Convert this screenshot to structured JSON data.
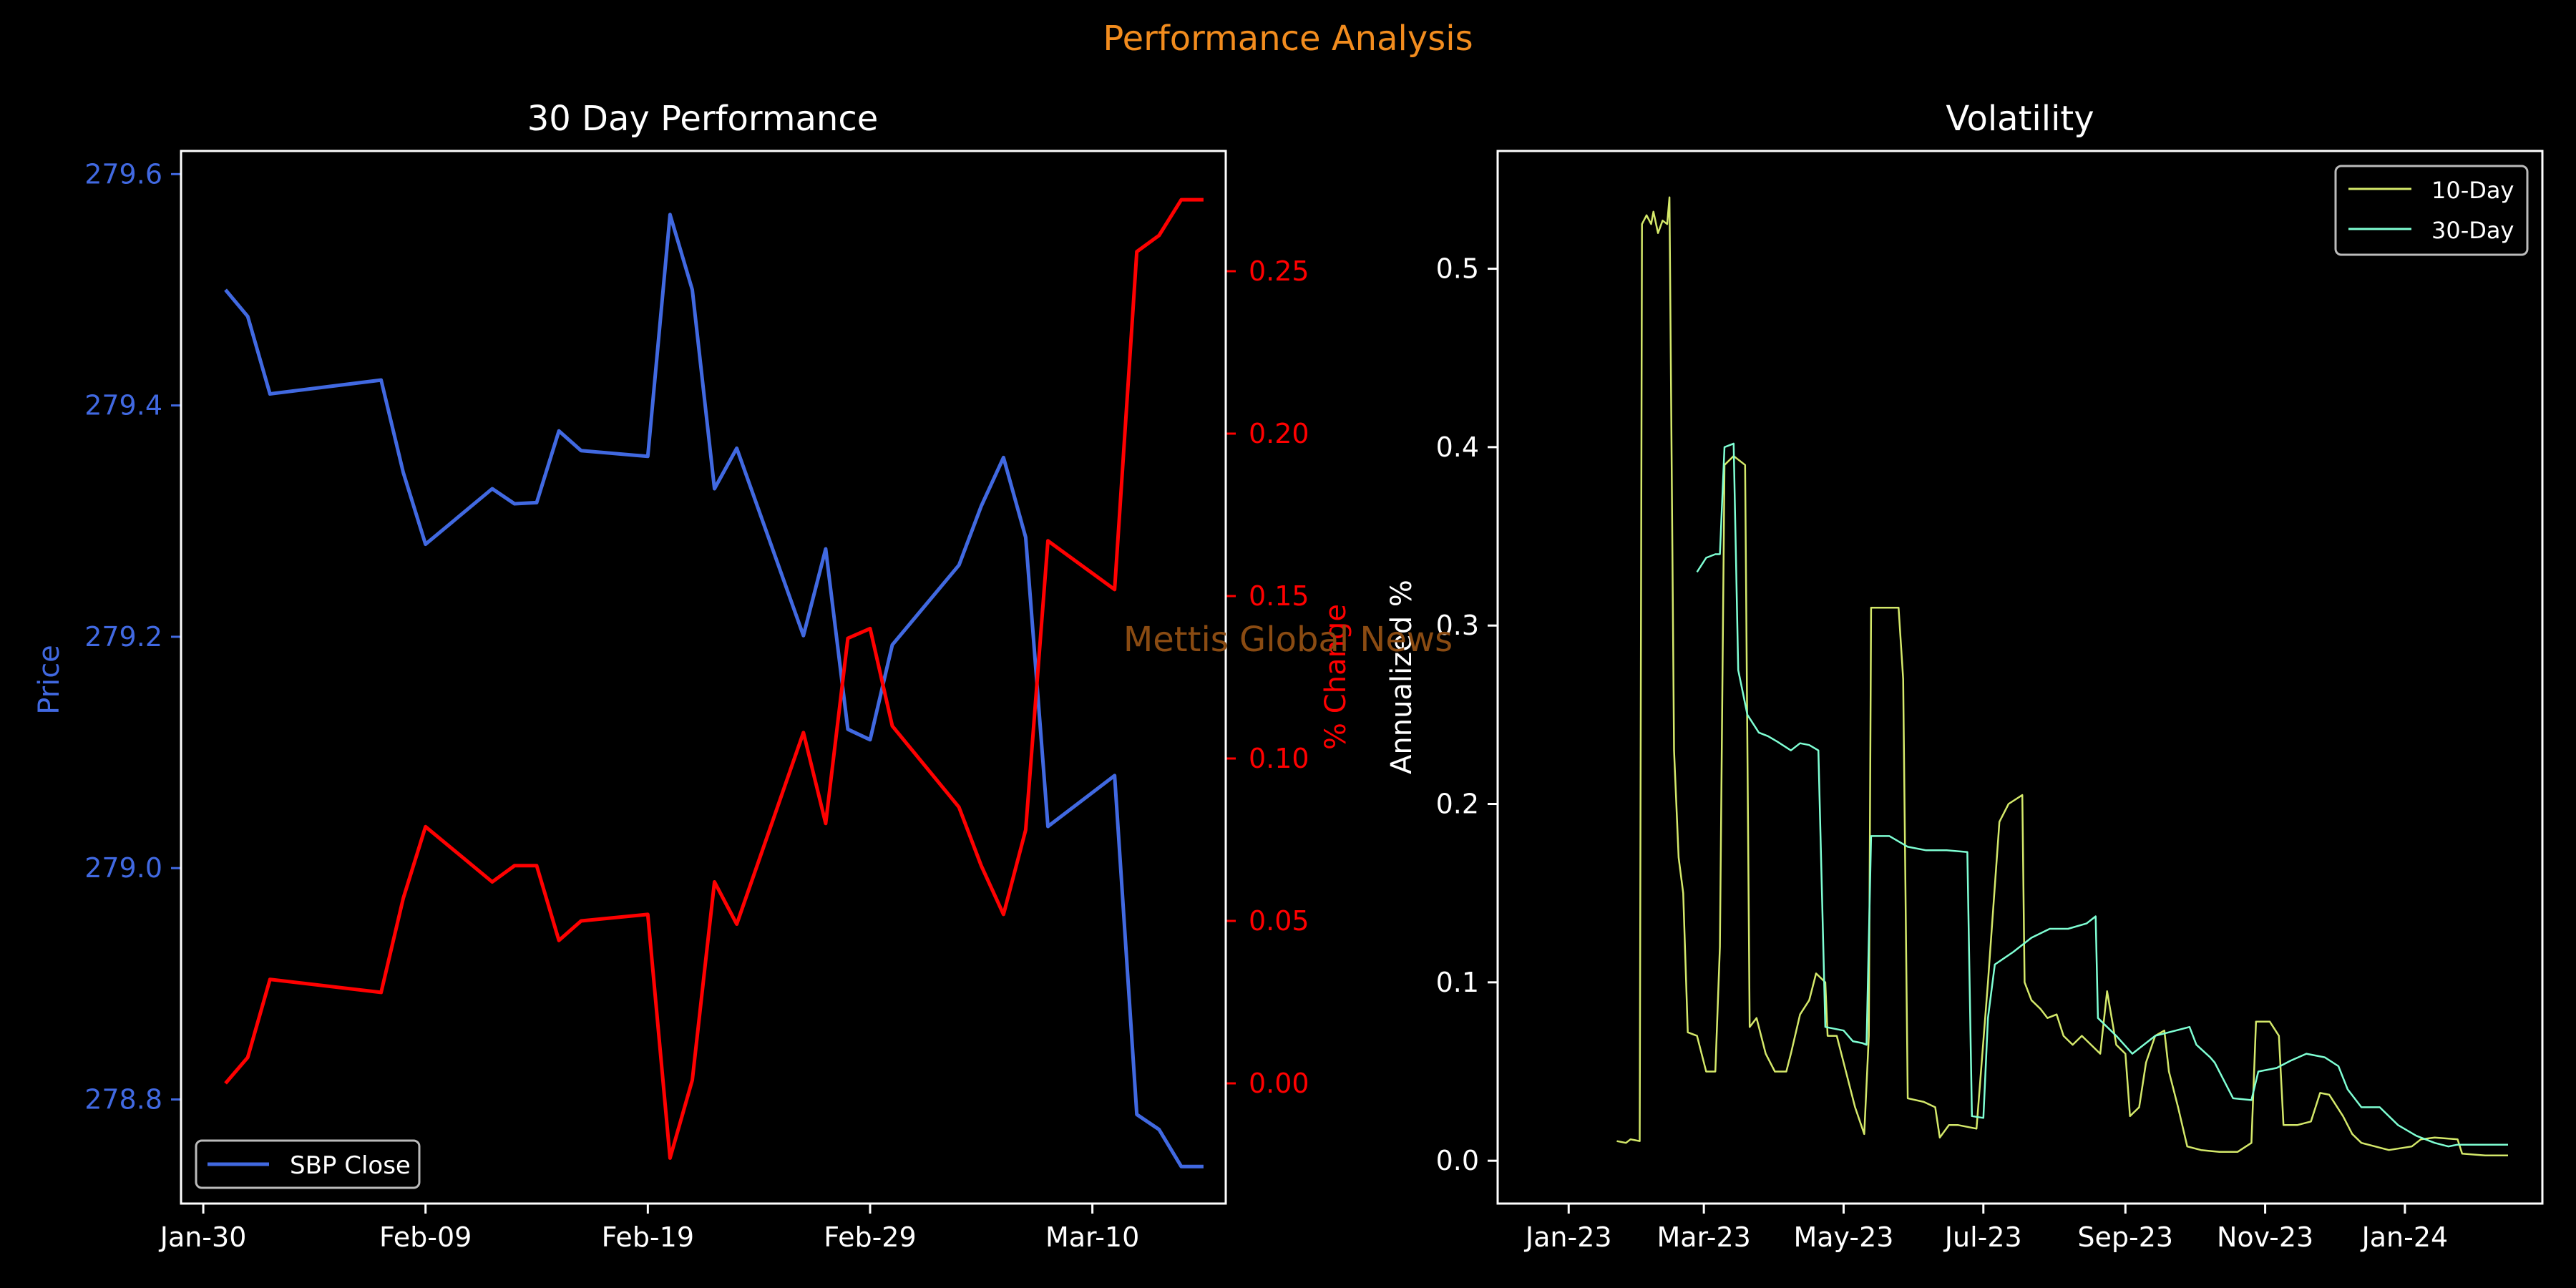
{
  "figure": {
    "suptitle": "Performance Analysis",
    "watermark": "Mettis Global News",
    "colors": {
      "background": "#000000",
      "suptitle": "#f28c1e",
      "watermark": "#8a4b12",
      "price": "#4169e1",
      "pct": "#ff0000",
      "vol10": "#d4e86a",
      "vol30": "#7fffd4",
      "axes": "#ffffff"
    }
  },
  "chart_data": [
    {
      "type": "line",
      "title": "30 Day Performance",
      "xlabel": "",
      "ylabel": "Price",
      "ylabel_right": "% Change",
      "x_ticks": [
        "Jan-30",
        "Feb-09",
        "Feb-19",
        "Feb-29",
        "Mar-10"
      ],
      "ylim": [
        278.71,
        279.62
      ],
      "yticks": [
        "278.8",
        "279.0",
        "279.2",
        "279.4",
        "279.6"
      ],
      "ylim_right": [
        -0.037,
        0.287
      ],
      "yticks_right": [
        "0.00",
        "0.05",
        "0.10",
        "0.15",
        "0.20",
        "0.25"
      ],
      "legend": {
        "placement": "lower-left",
        "entries": [
          "SBP Close"
        ]
      },
      "x": [
        "2024-01-31",
        "2024-02-01",
        "2024-02-02",
        "2024-02-07",
        "2024-02-08",
        "2024-02-09",
        "2024-02-12",
        "2024-02-13",
        "2024-02-14",
        "2024-02-15",
        "2024-02-16",
        "2024-02-19",
        "2024-02-20",
        "2024-02-21",
        "2024-02-22",
        "2024-02-23",
        "2024-02-26",
        "2024-02-27",
        "2024-02-28",
        "2024-02-29",
        "2024-03-01",
        "2024-03-04",
        "2024-03-05",
        "2024-03-06",
        "2024-03-07",
        "2024-03-08",
        "2024-03-11",
        "2024-03-12",
        "2024-03-13",
        "2024-03-14",
        "2024-03-15"
      ],
      "series": [
        {
          "name": "SBP Close",
          "axis": "left",
          "values": [
            279.5,
            279.477,
            279.41,
            279.422,
            279.342,
            279.28,
            279.328,
            279.315,
            279.316,
            279.378,
            279.361,
            279.356,
            279.565,
            279.5,
            279.328,
            279.363,
            279.201,
            279.276,
            279.12,
            279.111,
            279.193,
            279.262,
            279.313,
            279.355,
            279.286,
            279.036,
            279.08,
            278.787,
            278.774,
            278.742,
            278.742
          ]
        },
        {
          "name": "% Change",
          "axis": "right",
          "values": [
            0.0,
            0.008,
            0.032,
            0.028,
            0.057,
            0.079,
            0.062,
            0.067,
            0.067,
            0.044,
            0.05,
            0.052,
            -0.023,
            0.001,
            0.062,
            0.049,
            0.108,
            0.08,
            0.137,
            0.14,
            0.11,
            0.085,
            0.067,
            0.052,
            0.078,
            0.167,
            0.152,
            0.256,
            0.261,
            0.272,
            0.272
          ]
        }
      ]
    },
    {
      "type": "line",
      "title": "Volatility",
      "xlabel": "",
      "ylabel": "Annualized %",
      "x_ticks": [
        "Jan-23",
        "Mar-23",
        "May-23",
        "Jul-23",
        "Sep-23",
        "Nov-23",
        "Jan-24"
      ],
      "ylim": [
        -0.024,
        0.566
      ],
      "yticks": [
        "0.0",
        "0.1",
        "0.2",
        "0.3",
        "0.4",
        "0.5"
      ],
      "legend": {
        "placement": "upper-right",
        "entries": [
          "10-Day",
          "30-Day"
        ]
      },
      "series": [
        {
          "name": "10-Day",
          "points": [
            [
              "2023-01-22",
              0.011
            ],
            [
              "2023-01-26",
              0.01
            ],
            [
              "2023-01-28",
              0.012
            ],
            [
              "2023-02-01",
              0.011
            ],
            [
              "2023-02-02",
              0.525
            ],
            [
              "2023-02-04",
              0.53
            ],
            [
              "2023-02-06",
              0.525
            ],
            [
              "2023-02-07",
              0.532
            ],
            [
              "2023-02-09",
              0.52
            ],
            [
              "2023-02-11",
              0.527
            ],
            [
              "2023-02-13",
              0.525
            ],
            [
              "2023-02-14",
              0.54
            ],
            [
              "2023-02-16",
              0.23
            ],
            [
              "2023-02-18",
              0.17
            ],
            [
              "2023-02-20",
              0.15
            ],
            [
              "2023-02-22",
              0.072
            ],
            [
              "2023-02-26",
              0.07
            ],
            [
              "2023-03-02",
              0.05
            ],
            [
              "2023-03-06",
              0.05
            ],
            [
              "2023-03-08",
              0.12
            ],
            [
              "2023-03-10",
              0.39
            ],
            [
              "2023-03-14",
              0.395
            ],
            [
              "2023-03-19",
              0.39
            ],
            [
              "2023-03-21",
              0.075
            ],
            [
              "2023-03-24",
              0.08
            ],
            [
              "2023-03-28",
              0.06
            ],
            [
              "2023-04-01",
              0.05
            ],
            [
              "2023-04-06",
              0.05
            ],
            [
              "2023-04-08",
              0.06
            ],
            [
              "2023-04-12",
              0.082
            ],
            [
              "2023-04-16",
              0.09
            ],
            [
              "2023-04-19",
              0.105
            ],
            [
              "2023-04-23",
              0.1
            ],
            [
              "2023-04-24",
              0.07
            ],
            [
              "2023-04-28",
              0.07
            ],
            [
              "2023-05-02",
              0.05
            ],
            [
              "2023-05-06",
              0.03
            ],
            [
              "2023-05-10",
              0.015
            ],
            [
              "2023-05-12",
              0.07
            ],
            [
              "2023-05-13",
              0.31
            ],
            [
              "2023-05-25",
              0.31
            ],
            [
              "2023-05-27",
              0.27
            ],
            [
              "2023-05-29",
              0.035
            ],
            [
              "2023-06-05",
              0.033
            ],
            [
              "2023-06-10",
              0.03
            ],
            [
              "2023-06-12",
              0.013
            ],
            [
              "2023-06-16",
              0.02
            ],
            [
              "2023-06-20",
              0.02
            ],
            [
              "2023-06-28",
              0.018
            ],
            [
              "2023-07-03",
              0.1
            ],
            [
              "2023-07-08",
              0.19
            ],
            [
              "2023-07-12",
              0.2
            ],
            [
              "2023-07-18",
              0.205
            ],
            [
              "2023-07-19",
              0.1
            ],
            [
              "2023-07-22",
              0.09
            ],
            [
              "2023-07-26",
              0.085
            ],
            [
              "2023-07-29",
              0.08
            ],
            [
              "2023-08-02",
              0.082
            ],
            [
              "2023-08-05",
              0.07
            ],
            [
              "2023-08-09",
              0.065
            ],
            [
              "2023-08-13",
              0.07
            ],
            [
              "2023-08-17",
              0.065
            ],
            [
              "2023-08-21",
              0.06
            ],
            [
              "2023-08-24",
              0.095
            ],
            [
              "2023-08-28",
              0.065
            ],
            [
              "2023-09-01",
              0.06
            ],
            [
              "2023-09-03",
              0.025
            ],
            [
              "2023-09-07",
              0.03
            ],
            [
              "2023-09-10",
              0.055
            ],
            [
              "2023-09-14",
              0.07
            ],
            [
              "2023-09-18",
              0.073
            ],
            [
              "2023-09-20",
              0.05
            ],
            [
              "2023-09-24",
              0.03
            ],
            [
              "2023-09-28",
              0.008
            ],
            [
              "2023-10-04",
              0.006
            ],
            [
              "2023-10-12",
              0.005
            ],
            [
              "2023-10-20",
              0.005
            ],
            [
              "2023-10-26",
              0.01
            ],
            [
              "2023-10-28",
              0.078
            ],
            [
              "2023-11-03",
              0.078
            ],
            [
              "2023-11-07",
              0.07
            ],
            [
              "2023-11-09",
              0.02
            ],
            [
              "2023-11-15",
              0.02
            ],
            [
              "2023-11-21",
              0.022
            ],
            [
              "2023-11-25",
              0.038
            ],
            [
              "2023-11-29",
              0.037
            ],
            [
              "2023-12-05",
              0.025
            ],
            [
              "2023-12-09",
              0.015
            ],
            [
              "2023-12-13",
              0.01
            ],
            [
              "2023-12-19",
              0.008
            ],
            [
              "2023-12-25",
              0.006
            ],
            [
              "2024-01-04",
              0.008
            ],
            [
              "2024-01-08",
              0.012
            ],
            [
              "2024-01-14",
              0.013
            ],
            [
              "2024-01-24",
              0.012
            ],
            [
              "2024-01-26",
              0.004
            ],
            [
              "2024-02-05",
              0.003
            ],
            [
              "2024-02-15",
              0.003
            ]
          ]
        },
        {
          "name": "30-Day",
          "points": [
            [
              "2023-02-26",
              0.33
            ],
            [
              "2023-03-02",
              0.338
            ],
            [
              "2023-03-06",
              0.34
            ],
            [
              "2023-03-08",
              0.34
            ],
            [
              "2023-03-10",
              0.4
            ],
            [
              "2023-03-14",
              0.402
            ],
            [
              "2023-03-16",
              0.275
            ],
            [
              "2023-03-20",
              0.25
            ],
            [
              "2023-03-25",
              0.24
            ],
            [
              "2023-03-29",
              0.238
            ],
            [
              "2023-04-02",
              0.235
            ],
            [
              "2023-04-08",
              0.23
            ],
            [
              "2023-04-12",
              0.234
            ],
            [
              "2023-04-16",
              0.233
            ],
            [
              "2023-04-20",
              0.23
            ],
            [
              "2023-04-23",
              0.075
            ],
            [
              "2023-05-01",
              0.073
            ],
            [
              "2023-05-05",
              0.067
            ],
            [
              "2023-05-09",
              0.066
            ],
            [
              "2023-05-11",
              0.065
            ],
            [
              "2023-05-13",
              0.182
            ],
            [
              "2023-05-21",
              0.182
            ],
            [
              "2023-05-29",
              0.176
            ],
            [
              "2023-06-06",
              0.174
            ],
            [
              "2023-06-15",
              0.174
            ],
            [
              "2023-06-24",
              0.173
            ],
            [
              "2023-06-26",
              0.025
            ],
            [
              "2023-07-01",
              0.024
            ],
            [
              "2023-07-03",
              0.08
            ],
            [
              "2023-07-06",
              0.11
            ],
            [
              "2023-07-14",
              0.117
            ],
            [
              "2023-07-22",
              0.125
            ],
            [
              "2023-07-30",
              0.13
            ],
            [
              "2023-08-07",
              0.13
            ],
            [
              "2023-08-15",
              0.133
            ],
            [
              "2023-08-19",
              0.137
            ],
            [
              "2023-08-20",
              0.08
            ],
            [
              "2023-08-28",
              0.07
            ],
            [
              "2023-09-04",
              0.06
            ],
            [
              "2023-09-14",
              0.07
            ],
            [
              "2023-09-23",
              0.073
            ],
            [
              "2023-09-29",
              0.075
            ],
            [
              "2023-10-02",
              0.065
            ],
            [
              "2023-10-08",
              0.058
            ],
            [
              "2023-10-10",
              0.055
            ],
            [
              "2023-10-18",
              0.035
            ],
            [
              "2023-10-26",
              0.034
            ],
            [
              "2023-10-29",
              0.05
            ],
            [
              "2023-11-06",
              0.052
            ],
            [
              "2023-11-12",
              0.056
            ],
            [
              "2023-11-19",
              0.06
            ],
            [
              "2023-11-27",
              0.058
            ],
            [
              "2023-12-03",
              0.053
            ],
            [
              "2023-12-07",
              0.04
            ],
            [
              "2023-12-13",
              0.03
            ],
            [
              "2023-12-21",
              0.03
            ],
            [
              "2023-12-29",
              0.02
            ],
            [
              "2024-01-06",
              0.014
            ],
            [
              "2024-01-14",
              0.01
            ],
            [
              "2024-01-20",
              0.008
            ],
            [
              "2024-01-24",
              0.009
            ],
            [
              "2024-02-05",
              0.009
            ],
            [
              "2024-02-15",
              0.009
            ]
          ]
        }
      ]
    }
  ]
}
